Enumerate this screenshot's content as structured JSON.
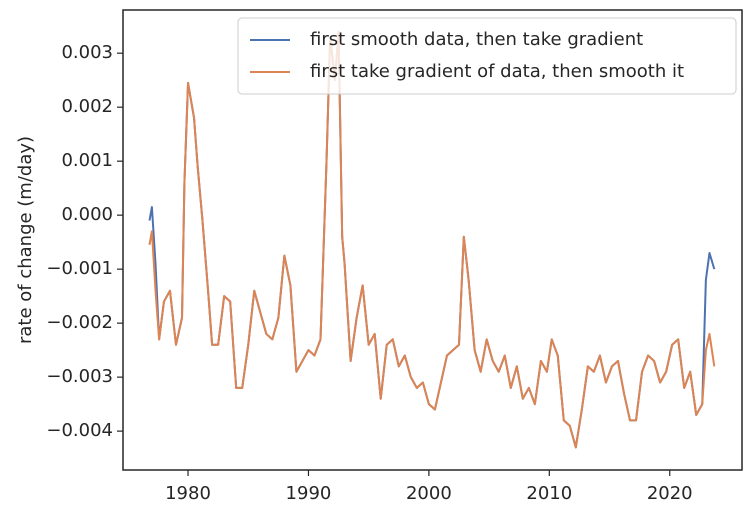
{
  "chart_data": {
    "type": "line",
    "y_label": "rate of change (m/day)",
    "x": [
      1976.8,
      1977.0,
      1977.3,
      1977.6,
      1978.0,
      1978.5,
      1979.0,
      1979.5,
      1979.7,
      1980.0,
      1980.5,
      1980.8,
      1981.2,
      1981.7,
      1982.0,
      1982.5,
      1983.0,
      1983.5,
      1984.0,
      1984.5,
      1985.0,
      1985.5,
      1986.0,
      1986.5,
      1987.0,
      1987.5,
      1988.0,
      1988.5,
      1989.0,
      1989.5,
      1990.0,
      1990.5,
      1991.0,
      1991.5,
      1991.8,
      1992.2,
      1992.5,
      1992.8,
      1993.0,
      1993.5,
      1994.0,
      1994.5,
      1995.0,
      1995.5,
      1996.0,
      1996.5,
      1997.0,
      1997.5,
      1998.0,
      1998.5,
      1999.0,
      1999.5,
      2000.0,
      2000.5,
      2001.0,
      2001.5,
      2002.0,
      2002.5,
      2002.9,
      2003.3,
      2003.8,
      2004.3,
      2004.8,
      2005.3,
      2005.8,
      2006.3,
      2006.8,
      2007.3,
      2007.8,
      2008.3,
      2008.8,
      2009.3,
      2009.8,
      2010.2,
      2010.7,
      2011.2,
      2011.7,
      2012.2,
      2012.7,
      2013.2,
      2013.7,
      2014.2,
      2014.7,
      2015.2,
      2015.7,
      2016.2,
      2016.7,
      2017.2,
      2017.7,
      2018.2,
      2018.7,
      2019.2,
      2019.7,
      2020.2,
      2020.7,
      2021.2,
      2021.7,
      2022.2,
      2022.7,
      2023.0,
      2023.3,
      2023.7
    ],
    "series": [
      {
        "name": "first smooth data, then take gradient",
        "color": "#4c72b0",
        "values": [
          -0.0001,
          0.00015,
          -0.0009,
          -0.0023,
          -0.0016,
          -0.0014,
          -0.0024,
          -0.0019,
          0.0006,
          0.00245,
          0.0018,
          0.0009,
          -0.0001,
          -0.0015,
          -0.0024,
          -0.0024,
          -0.0015,
          -0.0016,
          -0.0032,
          -0.0032,
          -0.0024,
          -0.0014,
          -0.0018,
          -0.0022,
          -0.0023,
          -0.0019,
          -0.00075,
          -0.0013,
          -0.0029,
          -0.0027,
          -0.0025,
          -0.0026,
          -0.0023,
          0.001,
          0.0033,
          0.0025,
          0.0034,
          -0.0004,
          -0.0009,
          -0.0027,
          -0.0019,
          -0.0013,
          -0.0024,
          -0.0022,
          -0.0034,
          -0.0024,
          -0.0023,
          -0.0028,
          -0.0026,
          -0.003,
          -0.0032,
          -0.0031,
          -0.0035,
          -0.0036,
          -0.0031,
          -0.0026,
          -0.0025,
          -0.0024,
          -0.0004,
          -0.0012,
          -0.0025,
          -0.0029,
          -0.0023,
          -0.0027,
          -0.0029,
          -0.0026,
          -0.0032,
          -0.0028,
          -0.0034,
          -0.0032,
          -0.0035,
          -0.0027,
          -0.0029,
          -0.0023,
          -0.0026,
          -0.0038,
          -0.0039,
          -0.0043,
          -0.0036,
          -0.0028,
          -0.0029,
          -0.0026,
          -0.0031,
          -0.0028,
          -0.0027,
          -0.0033,
          -0.0038,
          -0.0038,
          -0.0029,
          -0.0026,
          -0.0027,
          -0.0031,
          -0.0029,
          -0.0024,
          -0.0023,
          -0.0032,
          -0.0029,
          -0.0037,
          -0.0035,
          -0.0012,
          -0.0007,
          -0.001
        ]
      },
      {
        "name": "first take gradient of data, then smooth it",
        "color": "#dd8452",
        "values": [
          -0.00055,
          -0.0003,
          -0.0014,
          -0.0023,
          -0.0016,
          -0.0014,
          -0.0024,
          -0.0019,
          0.0006,
          0.00245,
          0.0018,
          0.0009,
          -0.0001,
          -0.0015,
          -0.0024,
          -0.0024,
          -0.0015,
          -0.0016,
          -0.0032,
          -0.0032,
          -0.0024,
          -0.0014,
          -0.0018,
          -0.0022,
          -0.0023,
          -0.0019,
          -0.00075,
          -0.0013,
          -0.0029,
          -0.0027,
          -0.0025,
          -0.0026,
          -0.0023,
          0.001,
          0.0033,
          0.0025,
          0.0034,
          -0.0004,
          -0.0009,
          -0.0027,
          -0.0019,
          -0.0013,
          -0.0024,
          -0.0022,
          -0.0034,
          -0.0024,
          -0.0023,
          -0.0028,
          -0.0026,
          -0.003,
          -0.0032,
          -0.0031,
          -0.0035,
          -0.0036,
          -0.0031,
          -0.0026,
          -0.0025,
          -0.0024,
          -0.0004,
          -0.0012,
          -0.0025,
          -0.0029,
          -0.0023,
          -0.0027,
          -0.0029,
          -0.0026,
          -0.0032,
          -0.0028,
          -0.0034,
          -0.0032,
          -0.0035,
          -0.0027,
          -0.0029,
          -0.0023,
          -0.0026,
          -0.0038,
          -0.0039,
          -0.0043,
          -0.0036,
          -0.0028,
          -0.0029,
          -0.0026,
          -0.0031,
          -0.0028,
          -0.0027,
          -0.0033,
          -0.0038,
          -0.0038,
          -0.0029,
          -0.0026,
          -0.0027,
          -0.0031,
          -0.0029,
          -0.0024,
          -0.0023,
          -0.0032,
          -0.0029,
          -0.0037,
          -0.0035,
          -0.0025,
          -0.0022,
          -0.0028
        ]
      }
    ],
    "xlim": [
      1974.6,
      2026.0
    ],
    "xticks": [
      1980,
      1990,
      2000,
      2010,
      2020
    ],
    "ylim": [
      -0.00472,
      0.0038
    ],
    "yticks": [
      {
        "value": -0.004,
        "label": "−0.004"
      },
      {
        "value": -0.003,
        "label": "−0.003"
      },
      {
        "value": -0.002,
        "label": "−0.002"
      },
      {
        "value": -0.001,
        "label": "−0.001"
      },
      {
        "value": 0,
        "label": "0.000"
      },
      0.001,
      0.002,
      0.003
    ],
    "legend": "upper right",
    "grid": false
  }
}
